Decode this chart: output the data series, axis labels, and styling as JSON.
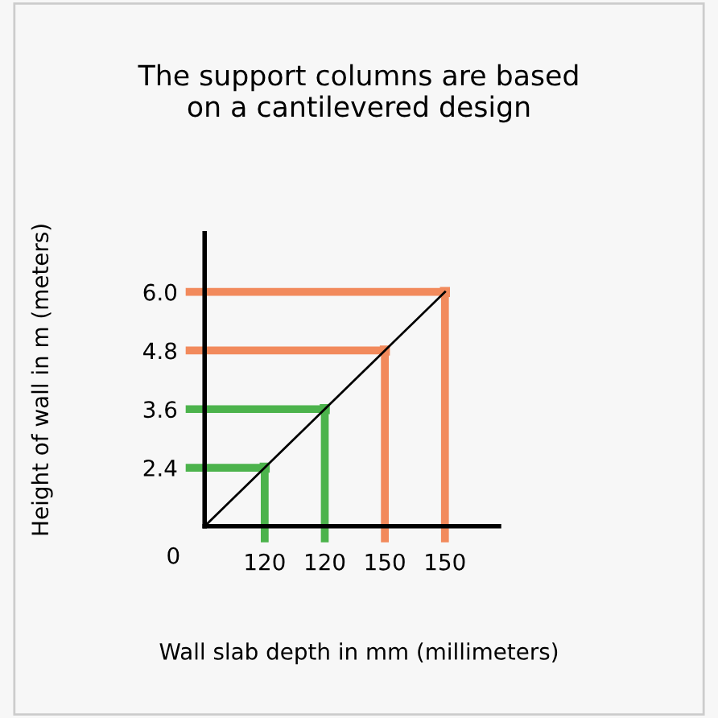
{
  "chart_data": {
    "type": "lollipop",
    "title": "The support columns are based\non a cantilevered design",
    "xlabel": "Wall slab depth in mm (millimeters)",
    "ylabel": "Height of wall in m (meters)",
    "categories": [
      null,
      "120",
      "120",
      "150",
      "150"
    ],
    "ylim": [
      1.2,
      7.2
    ],
    "yticks": [
      2.4,
      3.6,
      4.8,
      {
        "value": 6.0,
        "label": "6.0"
      }
    ],
    "annotations": [
      "0"
    ],
    "grid": false,
    "series": [
      {
        "values": [
          1.2,
          2.4,
          3.6,
          4.8,
          6.0
        ],
        "color": "#000000",
        "type": "line"
      },
      {
        "values": [
          null,
          2.4,
          3.6,
          null,
          null
        ],
        "color": "#4cb34c"
      },
      {
        "values": [
          null,
          null,
          null,
          4.8,
          6.0
        ],
        "color": "#f28a5c"
      }
    ]
  }
}
